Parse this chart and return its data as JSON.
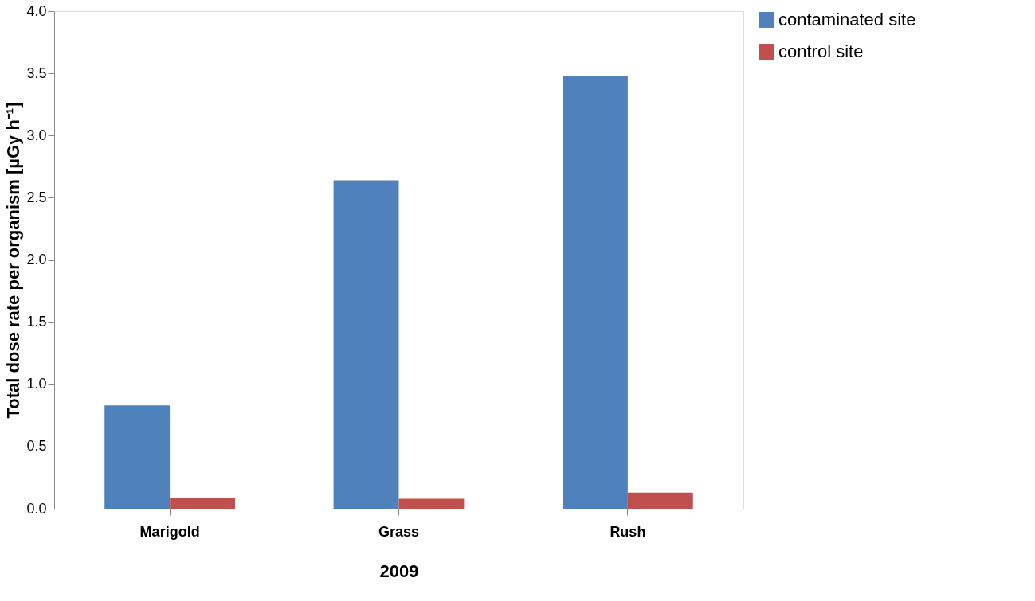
{
  "chart_data": {
    "type": "bar",
    "xlabel": "2009",
    "ylabel": "Total dose rate per organism [µGy h⁻¹]",
    "categories": [
      "Marigold",
      "Grass",
      "Rush"
    ],
    "series": [
      {
        "name": "contaminated site",
        "color": "#4f81bd",
        "values": [
          0.83,
          2.64,
          3.48
        ]
      },
      {
        "name": "control site",
        "color": "#c0504d",
        "values": [
          0.09,
          0.08,
          0.13
        ]
      }
    ],
    "ylim": [
      0,
      4
    ],
    "yticks": [
      {
        "value": 0,
        "label": "0.0"
      },
      {
        "value": 0.5,
        "label": "0.5"
      },
      {
        "value": 1,
        "label": "1.0"
      },
      {
        "value": 1.5,
        "label": "1.5"
      },
      {
        "value": 2,
        "label": "2.0"
      },
      {
        "value": 2.5,
        "label": "2.5"
      },
      {
        "value": 3,
        "label": "3.0"
      },
      {
        "value": 3.5,
        "label": "3.5"
      },
      {
        "value": 4,
        "label": "4.0"
      }
    ],
    "grid": false,
    "legend": "right"
  }
}
